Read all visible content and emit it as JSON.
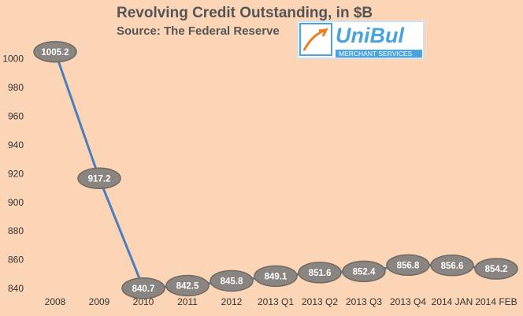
{
  "chart_data": {
    "type": "line",
    "title": "Revolving Credit Outstanding, in $B",
    "subtitle": "Source: The Federal Reserve",
    "logo": {
      "name": "UniBul",
      "tagline": "MERCHANT SERVICES"
    },
    "categories": [
      "2008",
      "2009",
      "2010",
      "2011",
      "2012",
      "2013 Q1",
      "2013 Q2",
      "2013 Q3",
      "2013 Q4",
      "2014 JAN",
      "2014 FEB"
    ],
    "values": [
      1005.2,
      917.2,
      840.7,
      842.5,
      845.8,
      849.1,
      851.6,
      852.4,
      856.8,
      856.6,
      854.2
    ],
    "color": "#4a7ebf",
    "ylim": [
      840,
      1010
    ],
    "yticks": [
      840,
      860,
      880,
      900,
      920,
      940,
      960,
      980,
      1000
    ],
    "grid": false
  }
}
